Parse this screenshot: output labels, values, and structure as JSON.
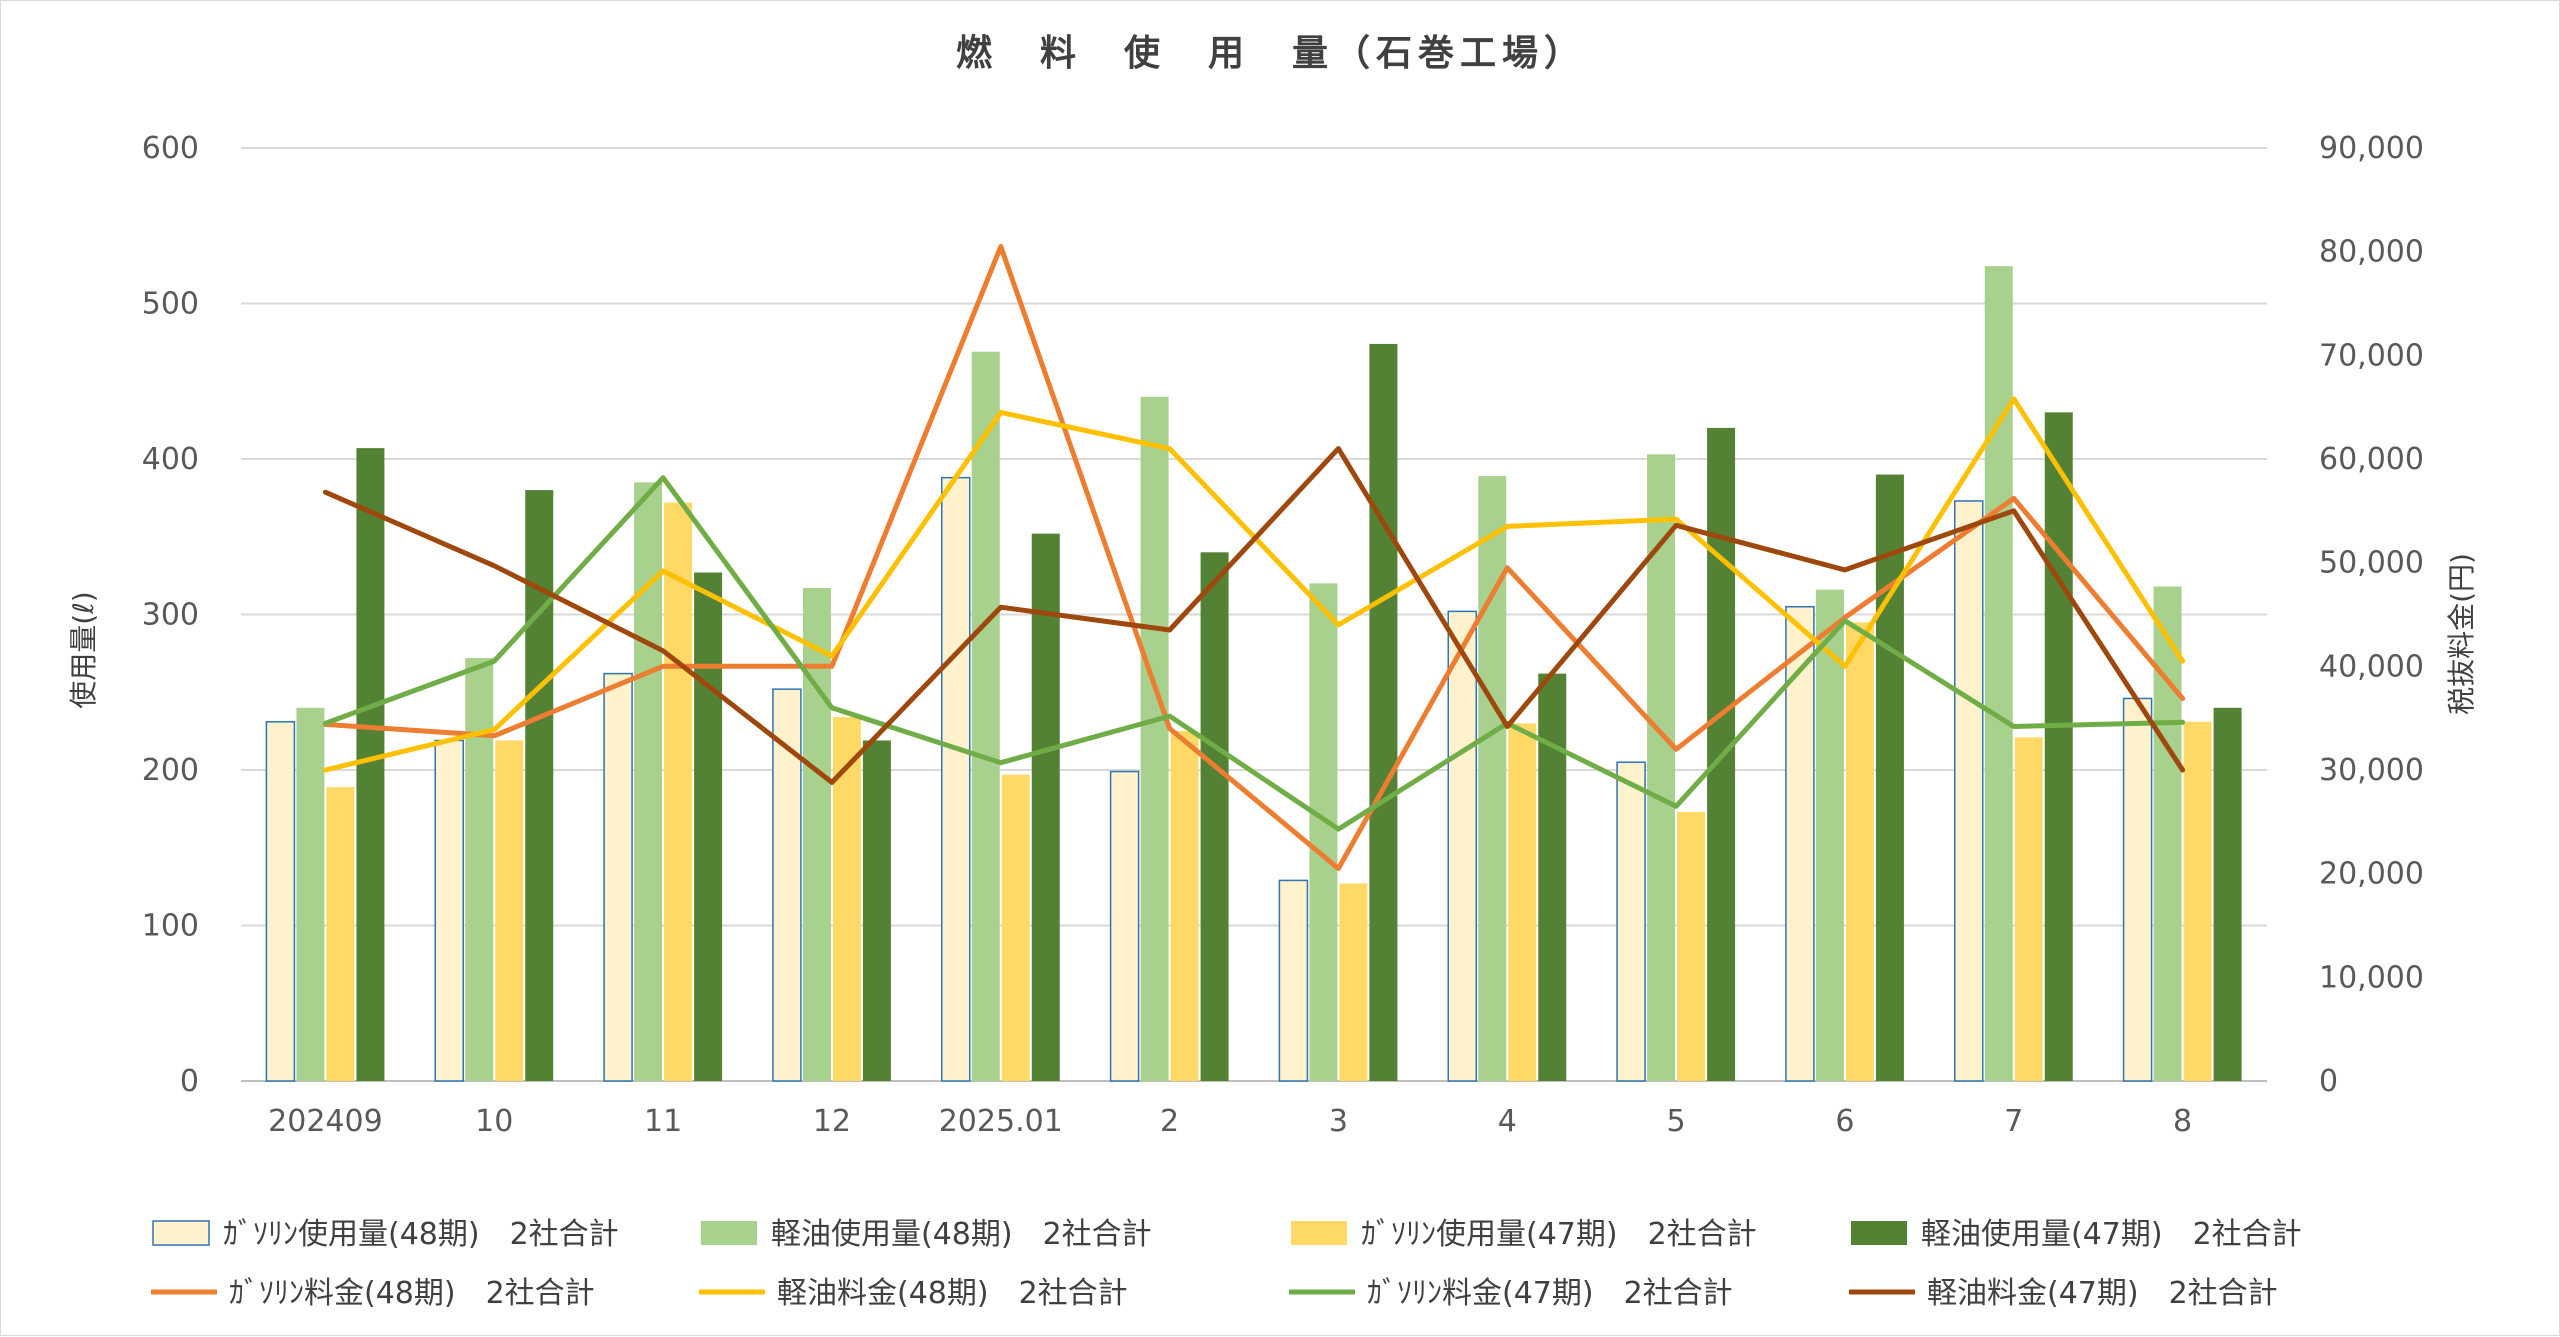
{
  "chart_data": {
    "type": "bar",
    "title": "燃　料　使　用　量（石巻工場）",
    "categories": [
      "202409",
      "10",
      "11",
      "12",
      "2025.01",
      "2",
      "3",
      "4",
      "5",
      "6",
      "7",
      "8"
    ],
    "ylabel": "使用量(ℓ)",
    "y2label": "税抜料金(円)",
    "ylim": [
      0,
      600
    ],
    "y2lim": [
      0,
      90000
    ],
    "yticks": [
      "0",
      "100",
      "200",
      "300",
      "400",
      "500",
      "600"
    ],
    "y2ticks": [
      "0",
      "10,000",
      "20,000",
      "30,000",
      "40,000",
      "50,000",
      "60,000",
      "70,000",
      "80,000",
      "90,000"
    ],
    "grid": true,
    "legend_position": "bottom",
    "bar_series": [
      {
        "name": "ｶﾞｿﾘﾝ使用量(48期)　2社合計",
        "fill": "#FFF2CC",
        "stroke": "#2E75B6",
        "values": [
          231,
          219,
          262,
          252,
          388,
          199,
          129,
          302,
          205,
          305,
          373,
          246
        ]
      },
      {
        "name": "軽油使用量(48期)　2社合計",
        "fill": "#A9D18E",
        "stroke": "none",
        "values": [
          240,
          272,
          385,
          317,
          469,
          440,
          320,
          389,
          403,
          316,
          524,
          318
        ]
      },
      {
        "name": "ｶﾞｿﾘﾝ使用量(47期)　2社合計",
        "fill": "#FFD966",
        "stroke": "none",
        "values": [
          189,
          219,
          372,
          234,
          197,
          225,
          127,
          230,
          173,
          295,
          221,
          231
        ]
      },
      {
        "name": "軽油使用量(47期)　2社合計",
        "fill": "#548235",
        "stroke": "none",
        "values": [
          407,
          380,
          327,
          219,
          352,
          340,
          474,
          262,
          420,
          390,
          430,
          240
        ]
      }
    ],
    "line_series": [
      {
        "name": "ｶﾞｿﾘﾝ料金(48期)　2社合計",
        "color": "#ED7D31",
        "values": [
          34400,
          33300,
          40000,
          40000,
          80500,
          34000,
          20500,
          49500,
          32000,
          44700,
          56200,
          36900
        ]
      },
      {
        "name": "軽油料金(48期)　2社合計",
        "color": "#FFC000",
        "values": [
          30000,
          33900,
          49200,
          41000,
          64500,
          61000,
          44000,
          53500,
          54200,
          40000,
          65800,
          40500
        ]
      },
      {
        "name": "ｶﾞｿﾘﾝ料金(47期)　2社合計",
        "color": "#70AD47",
        "values": [
          34500,
          40500,
          58200,
          36000,
          30700,
          35200,
          24300,
          34500,
          26500,
          44400,
          34200,
          34600
        ]
      },
      {
        "name": "軽油料金(47期)　2社合計",
        "color": "#9E480E",
        "values": [
          56800,
          49700,
          41500,
          28800,
          45700,
          43500,
          61000,
          34200,
          53600,
          49300,
          55000,
          30000
        ]
      }
    ]
  }
}
